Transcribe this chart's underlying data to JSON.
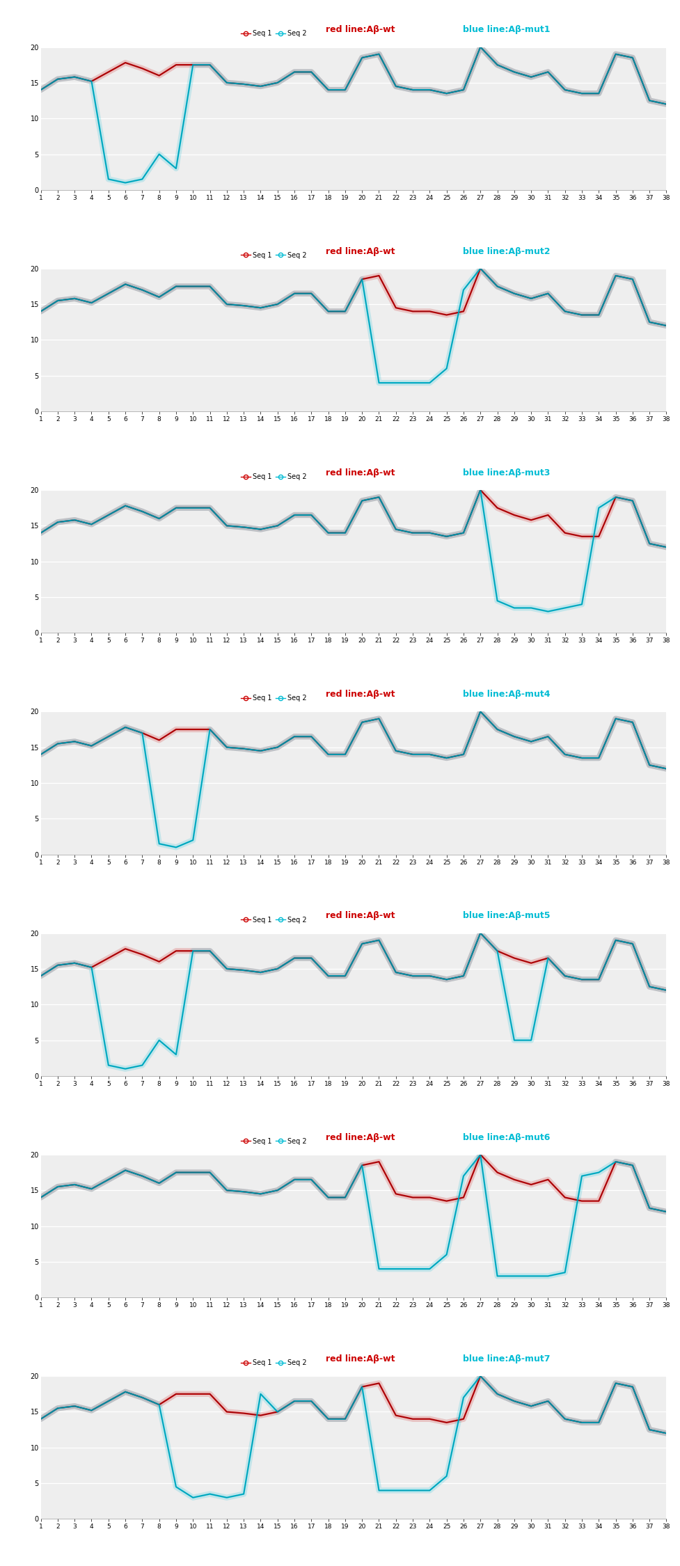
{
  "x": [
    1,
    2,
    3,
    4,
    5,
    6,
    7,
    8,
    9,
    10,
    11,
    12,
    13,
    14,
    15,
    16,
    17,
    18,
    19,
    20,
    21,
    22,
    23,
    24,
    25,
    26,
    27,
    28,
    29,
    30,
    31,
    32,
    33,
    34,
    35,
    36,
    37,
    38
  ],
  "seq1_wt": [
    14.0,
    15.5,
    15.8,
    15.2,
    16.5,
    17.8,
    17.0,
    16.0,
    17.5,
    17.5,
    17.5,
    15.0,
    14.8,
    14.5,
    15.0,
    16.5,
    16.5,
    14.0,
    14.0,
    18.5,
    19.0,
    14.5,
    14.0,
    14.0,
    13.5,
    14.0,
    20.0,
    17.5,
    16.5,
    15.8,
    16.5,
    14.0,
    13.5,
    13.5,
    19.0,
    18.5,
    12.5,
    12.0
  ],
  "mut1": [
    14.0,
    15.5,
    15.8,
    15.2,
    1.5,
    1.0,
    1.5,
    5.0,
    3.0,
    17.5,
    17.5,
    15.0,
    14.8,
    14.5,
    15.0,
    16.5,
    16.5,
    14.0,
    14.0,
    18.5,
    19.0,
    14.5,
    14.0,
    14.0,
    13.5,
    14.0,
    20.0,
    17.5,
    16.5,
    15.8,
    16.5,
    14.0,
    13.5,
    13.5,
    19.0,
    18.5,
    12.5,
    12.0
  ],
  "mut2": [
    14.0,
    15.5,
    15.8,
    15.2,
    16.5,
    17.8,
    17.0,
    16.0,
    17.5,
    17.5,
    17.5,
    15.0,
    14.8,
    14.5,
    15.0,
    16.5,
    16.5,
    14.0,
    14.0,
    18.5,
    4.0,
    4.0,
    4.0,
    4.0,
    6.0,
    17.0,
    20.0,
    17.5,
    16.5,
    15.8,
    16.5,
    14.0,
    13.5,
    13.5,
    19.0,
    18.5,
    12.5,
    12.0
  ],
  "mut3": [
    14.0,
    15.5,
    15.8,
    15.2,
    16.5,
    17.8,
    17.0,
    16.0,
    17.5,
    17.5,
    17.5,
    15.0,
    14.8,
    14.5,
    15.0,
    16.5,
    16.5,
    14.0,
    14.0,
    18.5,
    19.0,
    14.5,
    14.0,
    14.0,
    13.5,
    14.0,
    20.0,
    4.5,
    3.5,
    3.5,
    3.0,
    3.5,
    4.0,
    17.5,
    19.0,
    18.5,
    12.5,
    12.0
  ],
  "mut4": [
    14.0,
    15.5,
    15.8,
    15.2,
    16.5,
    17.8,
    17.0,
    1.5,
    1.0,
    2.0,
    17.5,
    15.0,
    14.8,
    14.5,
    15.0,
    16.5,
    16.5,
    14.0,
    14.0,
    18.5,
    19.0,
    14.5,
    14.0,
    14.0,
    13.5,
    14.0,
    20.0,
    17.5,
    16.5,
    15.8,
    16.5,
    14.0,
    13.5,
    13.5,
    19.0,
    18.5,
    12.5,
    12.0
  ],
  "mut5": [
    14.0,
    15.5,
    15.8,
    15.2,
    1.5,
    1.0,
    1.5,
    5.0,
    3.0,
    17.5,
    17.5,
    15.0,
    14.8,
    14.5,
    15.0,
    16.5,
    16.5,
    14.0,
    14.0,
    18.5,
    19.0,
    14.5,
    14.0,
    14.0,
    13.5,
    14.0,
    20.0,
    17.5,
    5.0,
    5.0,
    16.5,
    14.0,
    13.5,
    13.5,
    19.0,
    18.5,
    12.5,
    12.0
  ],
  "mut6": [
    14.0,
    15.5,
    15.8,
    15.2,
    16.5,
    17.8,
    17.0,
    16.0,
    17.5,
    17.5,
    17.5,
    15.0,
    14.8,
    14.5,
    15.0,
    16.5,
    16.5,
    14.0,
    14.0,
    18.5,
    4.0,
    4.0,
    4.0,
    4.0,
    6.0,
    17.0,
    20.0,
    3.0,
    3.0,
    3.0,
    3.0,
    3.5,
    17.0,
    17.5,
    19.0,
    18.5,
    12.5,
    12.0
  ],
  "mut7": [
    14.0,
    15.5,
    15.8,
    15.2,
    16.5,
    17.8,
    17.0,
    16.0,
    4.5,
    3.0,
    3.5,
    3.0,
    3.5,
    17.5,
    15.0,
    16.5,
    16.5,
    14.0,
    14.0,
    18.5,
    4.0,
    4.0,
    4.0,
    4.0,
    6.0,
    17.0,
    20.0,
    17.5,
    16.5,
    15.8,
    16.5,
    14.0,
    13.5,
    13.5,
    19.0,
    18.5,
    12.5,
    12.0
  ],
  "ylim": [
    0,
    20
  ],
  "yticks": [
    0,
    5,
    10,
    15,
    20
  ],
  "panel_labels": [
    "mut1",
    "mut2",
    "mut3",
    "mut4",
    "mut5",
    "mut6",
    "mut7"
  ],
  "red_color": "#cc0000",
  "blue_color": "#00bcd4",
  "dark_color": "#1a1a2e",
  "legend_text_red": "red line:Aβ-wt",
  "legend_text_blue_prefix": "blue line:Aβ-",
  "seq1_label": "Seq 1",
  "seq2_label": "Seq 2",
  "background_color": "#eeeeee"
}
